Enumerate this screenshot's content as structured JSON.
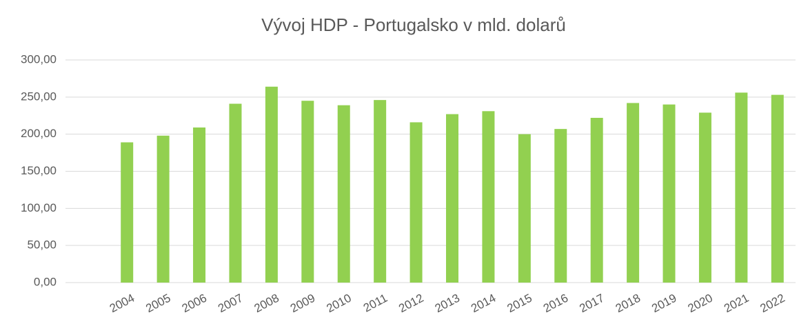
{
  "chart_data": {
    "type": "bar",
    "title": "Vývoj HDP - Portugalsko v mld. dolarů",
    "categories": [
      "2004",
      "2005",
      "2006",
      "2007",
      "2008",
      "2009",
      "2010",
      "2011",
      "2012",
      "2013",
      "2014",
      "2015",
      "2016",
      "2017",
      "2018",
      "2019",
      "2020",
      "2021",
      "2022"
    ],
    "values": [
      189,
      198,
      209,
      241,
      264,
      245,
      239,
      246,
      216,
      227,
      231,
      200,
      207,
      222,
      242,
      240,
      229,
      256,
      253
    ],
    "color": "#92d050",
    "ylim": [
      0,
      300
    ],
    "yticks": [
      {
        "value": 0,
        "label": "0,00"
      },
      {
        "value": 50,
        "label": "50,00"
      },
      {
        "value": 100,
        "label": "100,00"
      },
      {
        "value": 150,
        "label": "150,00"
      },
      {
        "value": 200,
        "label": "200,00"
      },
      {
        "value": 250,
        "label": "250,00"
      },
      {
        "value": 300,
        "label": "300,00"
      }
    ],
    "grid": true
  }
}
